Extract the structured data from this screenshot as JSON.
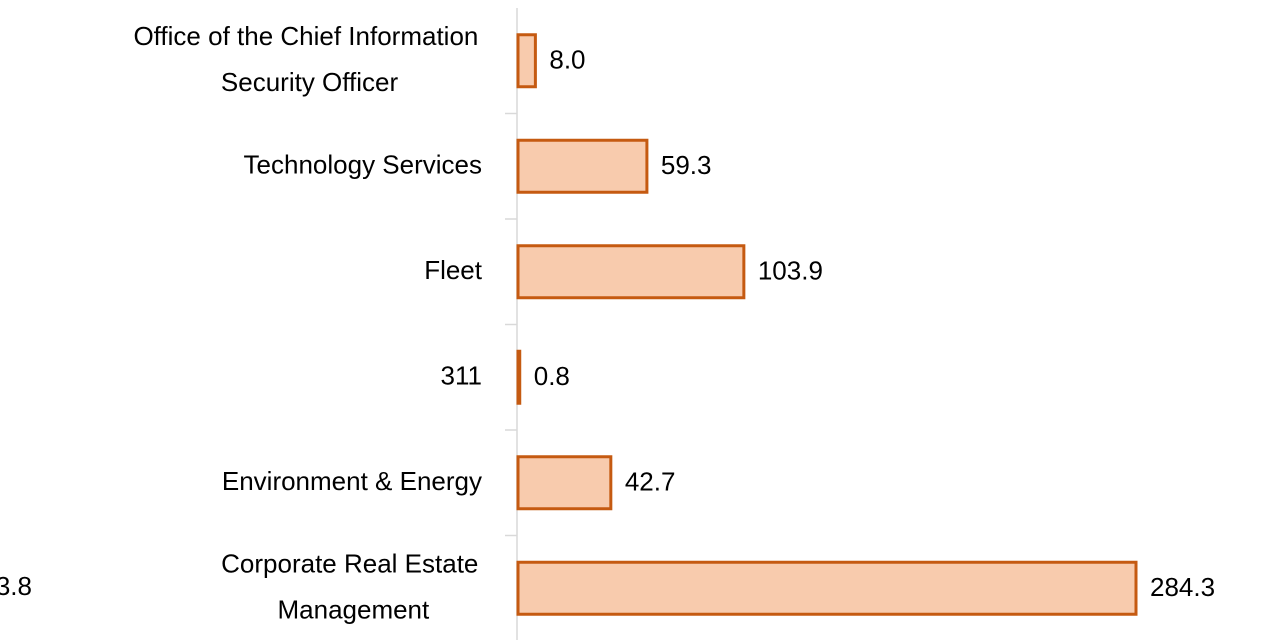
{
  "chart_data": {
    "type": "bar",
    "orientation": "horizontal",
    "categories": [
      "Office of the Chief Information Security Officer",
      "Technology Services",
      "Fleet",
      "311",
      "Environment & Energy",
      "Corporate Real Estate Management"
    ],
    "values": [
      8.0,
      59.3,
      103.9,
      0.8,
      42.7,
      284.3
    ],
    "value_labels": [
      "8.0",
      "59.3",
      "103.9",
      "0.8",
      "42.7",
      "284.3"
    ],
    "color": "#f8cbad",
    "edge_color": "#c55a11",
    "annotations": [
      "3.8"
    ]
  }
}
